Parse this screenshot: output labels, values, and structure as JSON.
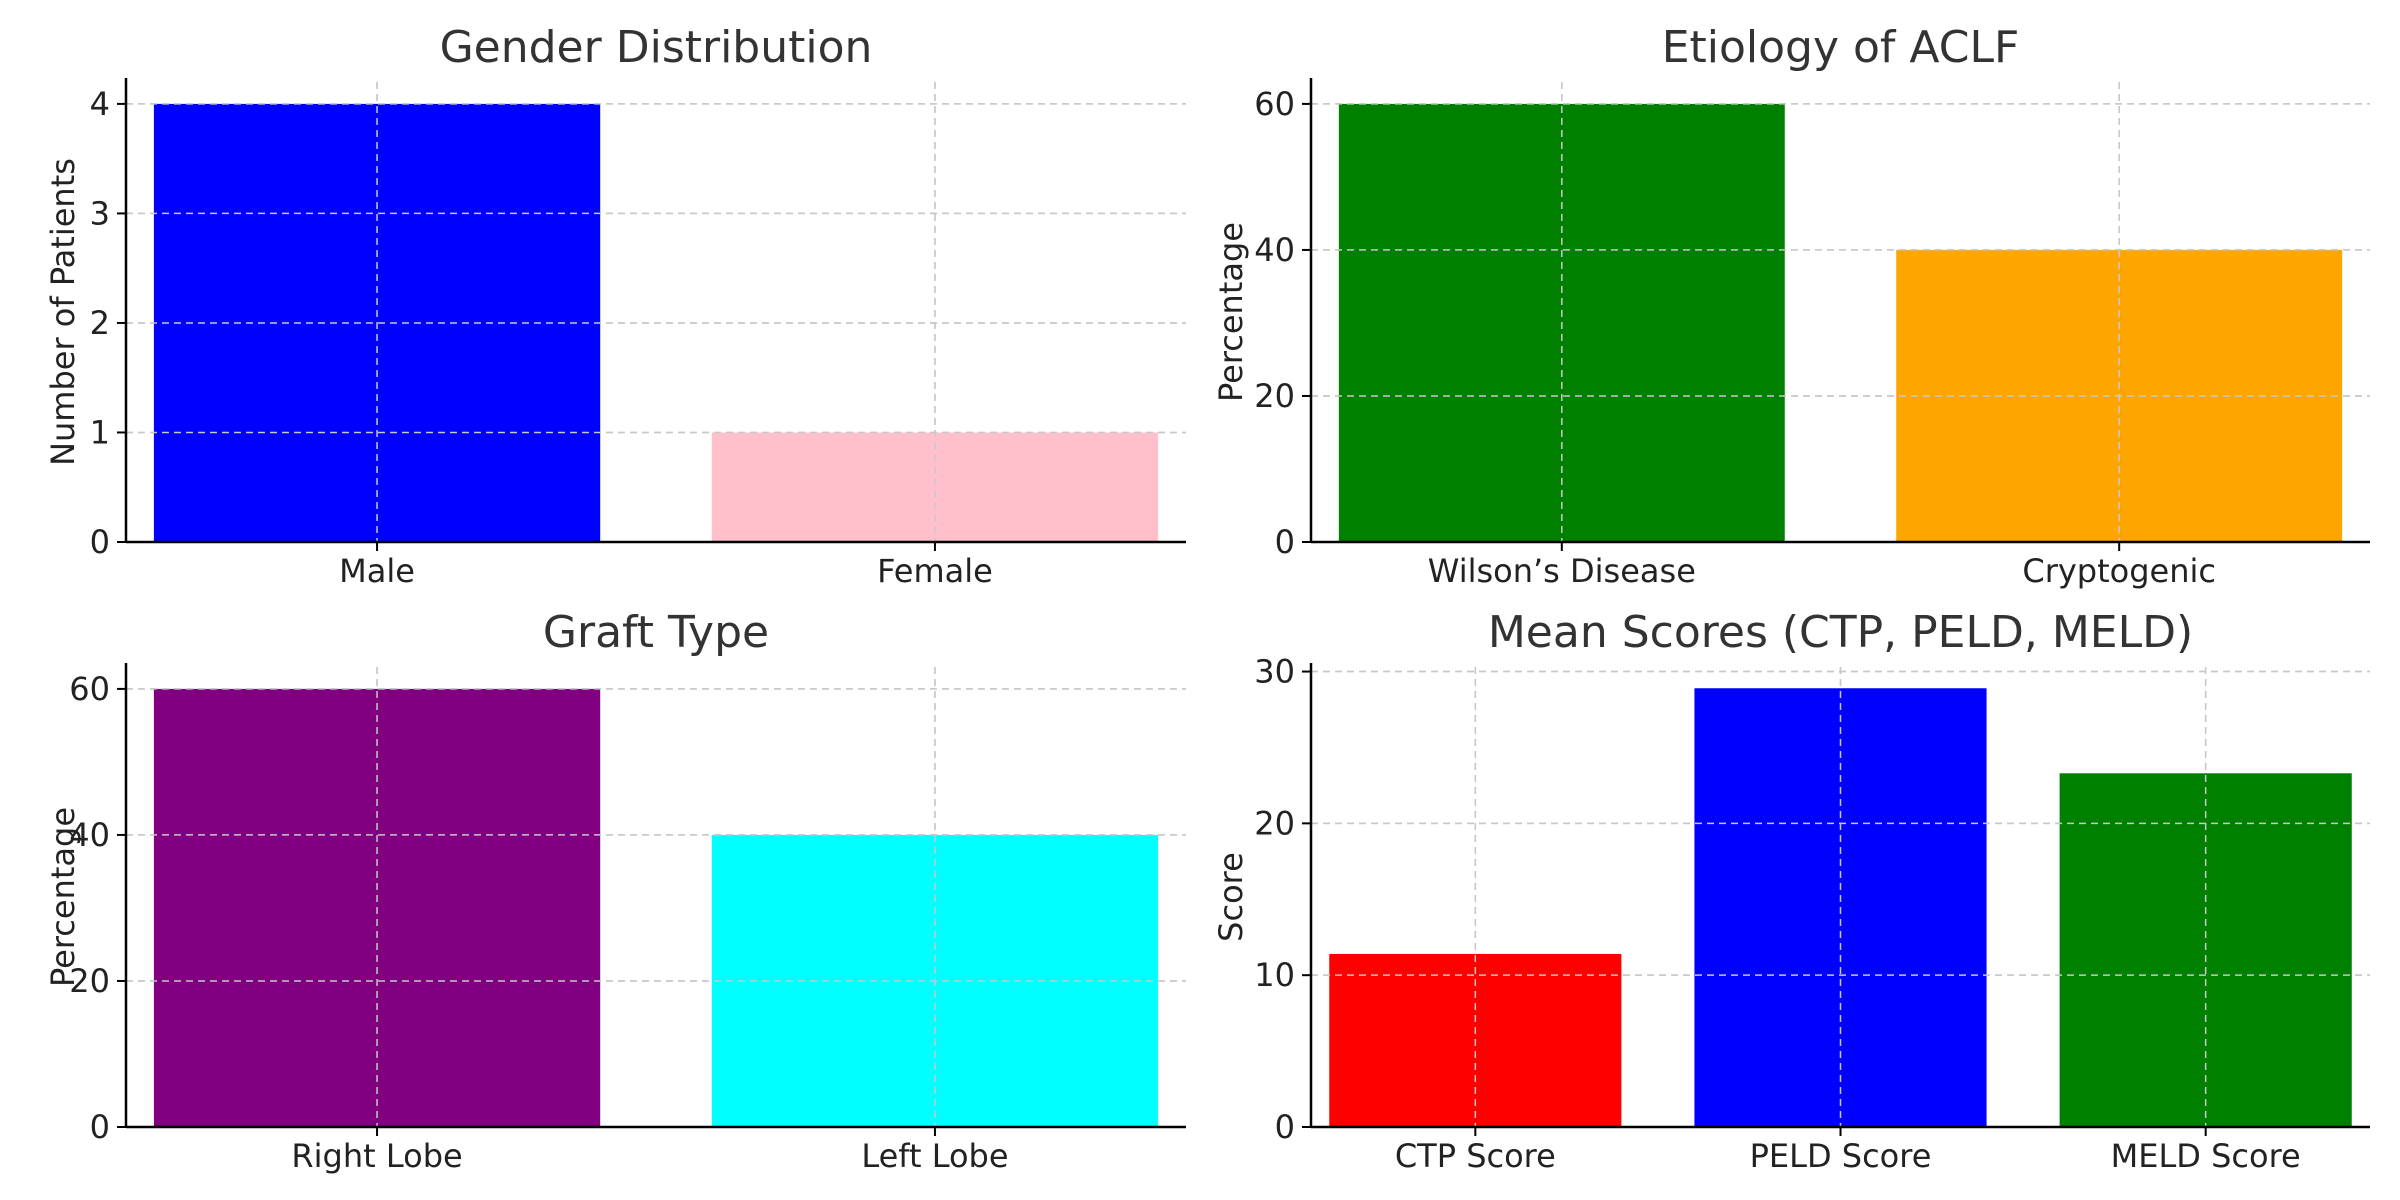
{
  "chart_data": [
    {
      "type": "bar",
      "title": "Gender Distribution",
      "xlabel": "",
      "ylabel": "Number of Patients",
      "categories": [
        "Male",
        "Female"
      ],
      "values": [
        4,
        1
      ],
      "colors": [
        "#0000ff",
        "#ffc0cb"
      ],
      "yticks": [
        0,
        1,
        2,
        3,
        4
      ],
      "ylim": [
        0,
        4.2
      ],
      "grid": true
    },
    {
      "type": "bar",
      "title": "Etiology of ACLF",
      "xlabel": "",
      "ylabel": "Percentage",
      "categories": [
        "Wilson’s Disease",
        "Cryptogenic"
      ],
      "values": [
        60,
        40
      ],
      "colors": [
        "#008000",
        "#ffa500"
      ],
      "yticks": [
        0,
        20,
        40,
        60
      ],
      "ylim": [
        0,
        63
      ],
      "grid": true
    },
    {
      "type": "bar",
      "title": "Graft Type",
      "xlabel": "",
      "ylabel": "Percentage",
      "categories": [
        "Right Lobe",
        "Left Lobe"
      ],
      "values": [
        60,
        40
      ],
      "colors": [
        "#800080",
        "#00ffff"
      ],
      "yticks": [
        0,
        20,
        40,
        60
      ],
      "ylim": [
        0,
        63
      ],
      "grid": true
    },
    {
      "type": "bar",
      "title": "Mean Scores (CTP, PELD, MELD)",
      "xlabel": "",
      "ylabel": "Score",
      "categories": [
        "CTP Score",
        "PELD Score",
        "MELD Score"
      ],
      "values": [
        11.4,
        28.9,
        23.3
      ],
      "colors": [
        "#ff0000",
        "#0000ff",
        "#008000"
      ],
      "yticks": [
        0,
        10,
        20,
        30
      ],
      "ylim": [
        0,
        30.3
      ],
      "grid": true
    }
  ]
}
